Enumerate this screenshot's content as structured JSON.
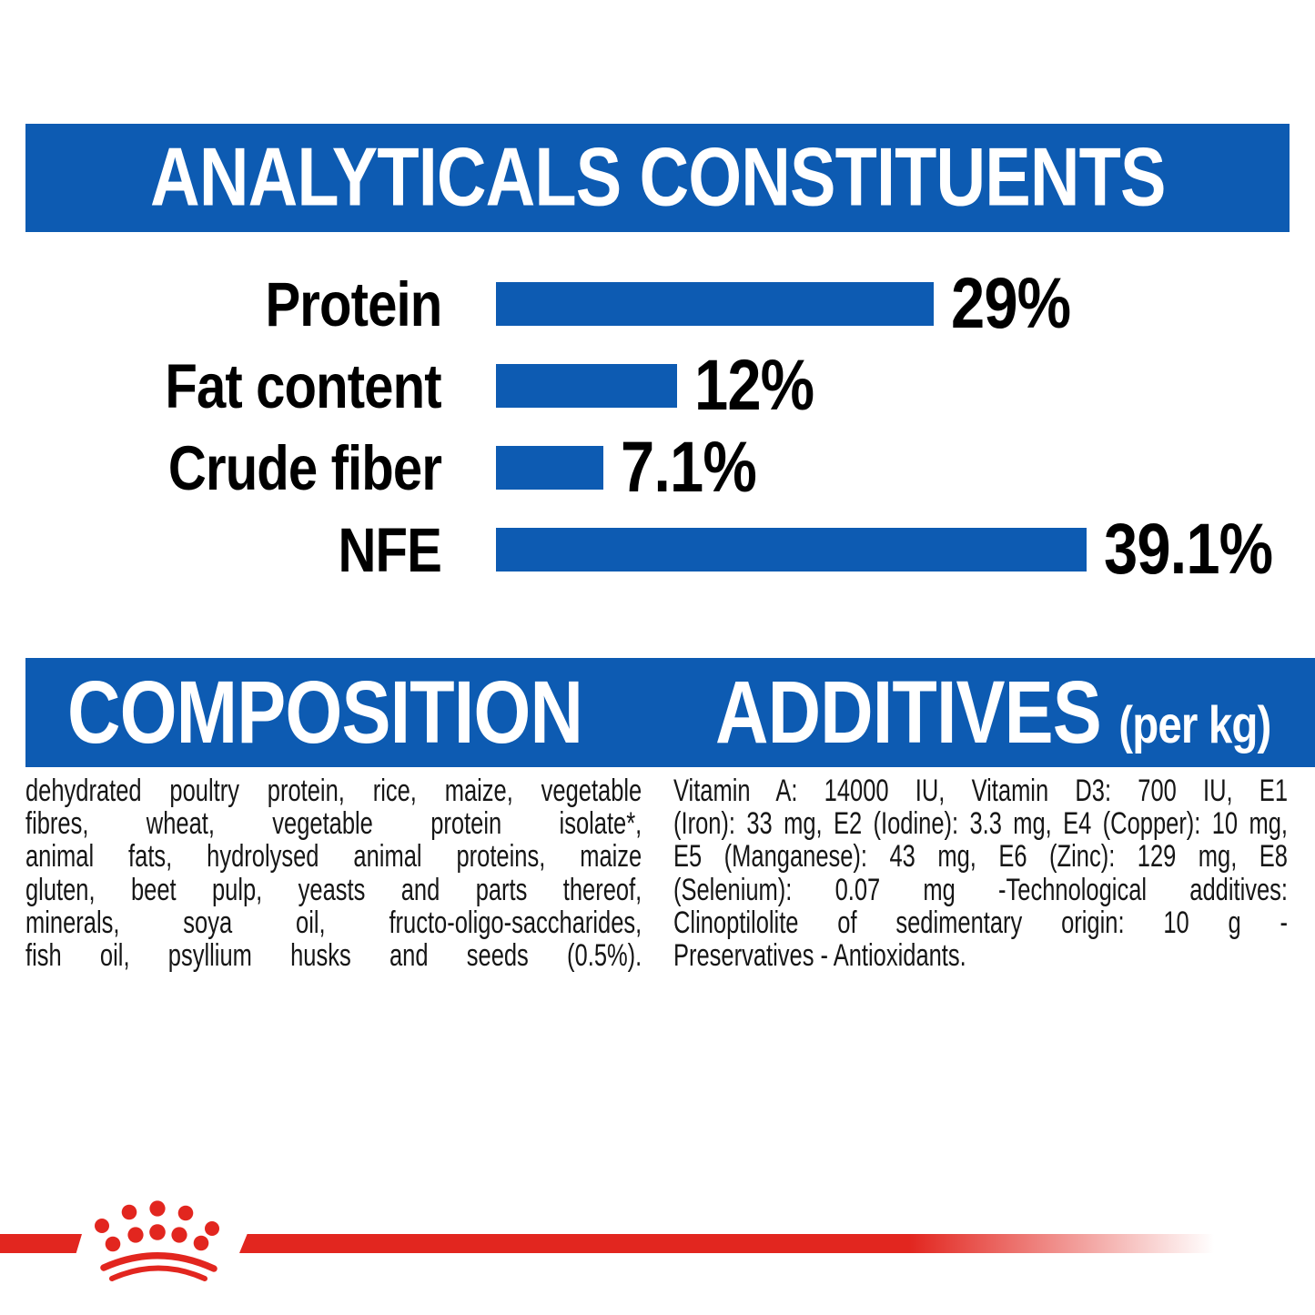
{
  "page": {
    "background": "#ffffff",
    "accent_blue": "#0D5BB2",
    "accent_red": "#E2261F",
    "text_color": "#161616"
  },
  "header": {
    "title": "ANALYTICALS CONSTITUENTS"
  },
  "chart_data": {
    "type": "bar",
    "orientation": "horizontal",
    "title": "ANALYTICALS CONSTITUENTS",
    "categories": [
      "Protein",
      "Fat content",
      "Crude fiber",
      "NFE"
    ],
    "values": [
      29,
      12,
      7.1,
      39.1
    ],
    "value_labels": [
      "29%",
      "12%",
      "7.1%",
      "39.1%"
    ],
    "unit": "%",
    "xlim": [
      0,
      40
    ],
    "bar_color": "#0D5BB2",
    "label_color": "#000000",
    "grid": false,
    "legend": false
  },
  "composition": {
    "heading": "COMPOSITION",
    "lines": [
      "dehydrated poultry protein, rice, maize, vegetable",
      "fibres, wheat, vegetable protein isolate*,",
      "animal fats, hydrolysed animal proteins, maize",
      "gluten, beet pulp, yeasts and parts thereof,",
      "minerals, soya oil, fructo-oligo-saccharides,",
      "fish oil, psyllium husks and seeds (0.5%)."
    ],
    "full_text": "dehydrated poultry protein, rice, maize, vegetable fibres, wheat, vegetable protein isolate*, animal fats, hydrolysed animal proteins, maize gluten, beet pulp, yeasts and parts thereof, minerals, soya oil, fructo-oligo-saccharides, fish oil, psyllium husks and seeds (0.5%)."
  },
  "additives": {
    "heading": "ADDITIVES",
    "heading_suffix": "(per kg)",
    "lines": [
      "Vitamin A: 14000 IU, Vitamin D3: 700 IU, E1",
      "(Iron): 33 mg, E2 (Iodine): 3.3 mg, E4 (Copper): 10 mg,",
      "E5 (Manganese): 43 mg, E6 (Zinc): 129 mg, E8",
      "(Selenium): 0.07 mg -Technological additives:",
      "Clinoptilolite of sedimentary origin: 10 g -",
      "Preservatives - Antioxidants."
    ],
    "full_text": "Vitamin A: 14000 IU, Vitamin D3: 700 IU, E1 (Iron): 33 mg, E2 (Iodine): 3.3 mg, E4 (Copper): 10 mg, E5 (Manganese): 43 mg, E6 (Zinc): 129 mg, E8 (Selenium): 0.07 mg -Technological additives: Clinoptilolite of sedimentary origin: 10 g - Preservatives - Antioxidants."
  },
  "footer": {
    "brand_logo": "royal-canin-crown",
    "stripe_color": "#E2261F"
  }
}
